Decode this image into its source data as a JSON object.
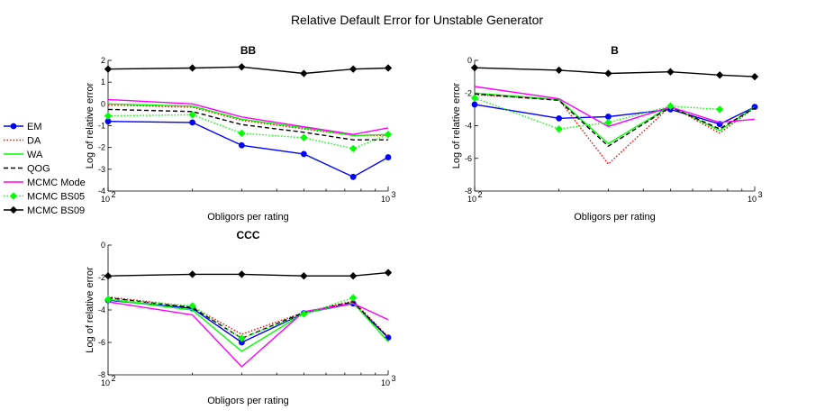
{
  "figure_title": "Relative Default Error for Unstable Generator",
  "chart_data": [
    {
      "type": "line",
      "title": "BB",
      "xlabel": "Obligors per rating",
      "ylabel": "Log of relative error",
      "xscale": "log",
      "xlim": [
        100,
        1000
      ],
      "ylim": [
        -4,
        2
      ],
      "yticks": [
        -4,
        -3,
        -2,
        -1,
        0,
        1,
        2
      ],
      "x": [
        100,
        200,
        300,
        500,
        750,
        1000
      ],
      "series": [
        {
          "name": "EM",
          "values": [
            -0.8,
            -0.85,
            -1.9,
            -2.3,
            -3.35,
            -2.45
          ]
        },
        {
          "name": "DA",
          "values": [
            -0.05,
            -0.15,
            -0.75,
            -1.15,
            -1.45,
            -1.45
          ]
        },
        {
          "name": "WA",
          "values": [
            0.0,
            -0.1,
            -0.7,
            -1.1,
            -1.45,
            -1.4
          ]
        },
        {
          "name": "QOG",
          "values": [
            -0.25,
            -0.35,
            -0.95,
            -1.3,
            -1.65,
            -1.65
          ]
        },
        {
          "name": "MCMC Mode",
          "values": [
            0.2,
            0.0,
            -0.6,
            -1.05,
            -1.4,
            -1.1
          ]
        },
        {
          "name": "MCMC BS05",
          "values": [
            -0.55,
            -0.5,
            -1.35,
            -1.55,
            -2.05,
            -1.4
          ]
        },
        {
          "name": "MCMC BS09",
          "values": [
            1.6,
            1.65,
            1.7,
            1.4,
            1.6,
            1.65
          ]
        }
      ]
    },
    {
      "type": "line",
      "title": "B",
      "xlabel": "Obligors per rating",
      "ylabel": "Log of relative error",
      "xscale": "log",
      "xlim": [
        100,
        1000
      ],
      "ylim": [
        -8,
        0
      ],
      "yticks": [
        -8,
        -6,
        -4,
        -2,
        0
      ],
      "x": [
        100,
        200,
        300,
        500,
        750,
        1000
      ],
      "series": [
        {
          "name": "EM",
          "values": [
            -2.7,
            -3.55,
            -3.45,
            -3.0,
            -3.9,
            -2.85
          ]
        },
        {
          "name": "DA",
          "values": [
            -2.1,
            -2.4,
            -6.35,
            -2.8,
            -4.45,
            -2.9
          ]
        },
        {
          "name": "WA",
          "values": [
            -2.0,
            -2.4,
            -5.1,
            -2.8,
            -4.3,
            -2.85
          ]
        },
        {
          "name": "QOG",
          "values": [
            -2.05,
            -2.45,
            -5.25,
            -2.85,
            -4.2,
            -2.9
          ]
        },
        {
          "name": "MCMC Mode",
          "values": [
            -1.6,
            -2.35,
            -4.05,
            -2.85,
            -3.8,
            -3.6
          ]
        },
        {
          "name": "MCMC BS05",
          "values": [
            -2.3,
            -4.2,
            -3.8,
            -2.8,
            -3.0,
            null
          ]
        },
        {
          "name": "MCMC BS09",
          "values": [
            -0.45,
            -0.6,
            -0.8,
            -0.7,
            -0.9,
            -1.0
          ]
        }
      ]
    },
    {
      "type": "line",
      "title": "CCC",
      "xlabel": "Obligors per rating",
      "ylabel": "Log of relative error",
      "xscale": "log",
      "xlim": [
        100,
        1000
      ],
      "ylim": [
        -8,
        0
      ],
      "yticks": [
        -8,
        -6,
        -4,
        -2,
        0
      ],
      "x": [
        100,
        200,
        300,
        500,
        750,
        1000
      ],
      "series": [
        {
          "name": "EM",
          "values": [
            -3.4,
            -3.9,
            -6.0,
            -4.2,
            -3.6,
            -5.7
          ]
        },
        {
          "name": "DA",
          "values": [
            -3.2,
            -3.8,
            -5.5,
            -4.15,
            -3.45,
            -5.65
          ]
        },
        {
          "name": "WA",
          "values": [
            -3.35,
            -4.0,
            -6.55,
            -4.2,
            -3.55,
            -5.95
          ]
        },
        {
          "name": "QOG",
          "values": [
            -3.25,
            -3.85,
            -5.75,
            -4.15,
            -3.5,
            -5.7
          ]
        },
        {
          "name": "MCMC Mode",
          "values": [
            -3.5,
            -4.3,
            -7.5,
            -4.1,
            -3.6,
            -4.6
          ]
        },
        {
          "name": "MCMC BS05",
          "values": [
            -3.35,
            -3.75,
            -5.75,
            -4.25,
            -3.25,
            null
          ]
        },
        {
          "name": "MCMC BS09",
          "values": [
            -1.9,
            -1.8,
            -1.8,
            -1.9,
            -1.9,
            -1.7
          ]
        }
      ]
    }
  ],
  "legend": {
    "placement": "left",
    "entries": [
      {
        "name": "EM",
        "color": "#0000ff",
        "dash": "solid",
        "marker": "circle"
      },
      {
        "name": "DA",
        "color": "#ff0000",
        "dash": "dotted",
        "marker": "none"
      },
      {
        "name": "WA",
        "color": "#00ff00",
        "dash": "solid",
        "marker": "none"
      },
      {
        "name": "QOG",
        "color": "#000000",
        "dash": "dashed",
        "marker": "none"
      },
      {
        "name": "MCMC Mode",
        "color": "#ff00ff",
        "dash": "solid",
        "marker": "none"
      },
      {
        "name": "MCMC BS05",
        "color": "#00ff00",
        "dash": "dotted",
        "marker": "diamond"
      },
      {
        "name": "MCMC BS09",
        "color": "#000000",
        "dash": "solid",
        "marker": "diamond"
      }
    ]
  }
}
